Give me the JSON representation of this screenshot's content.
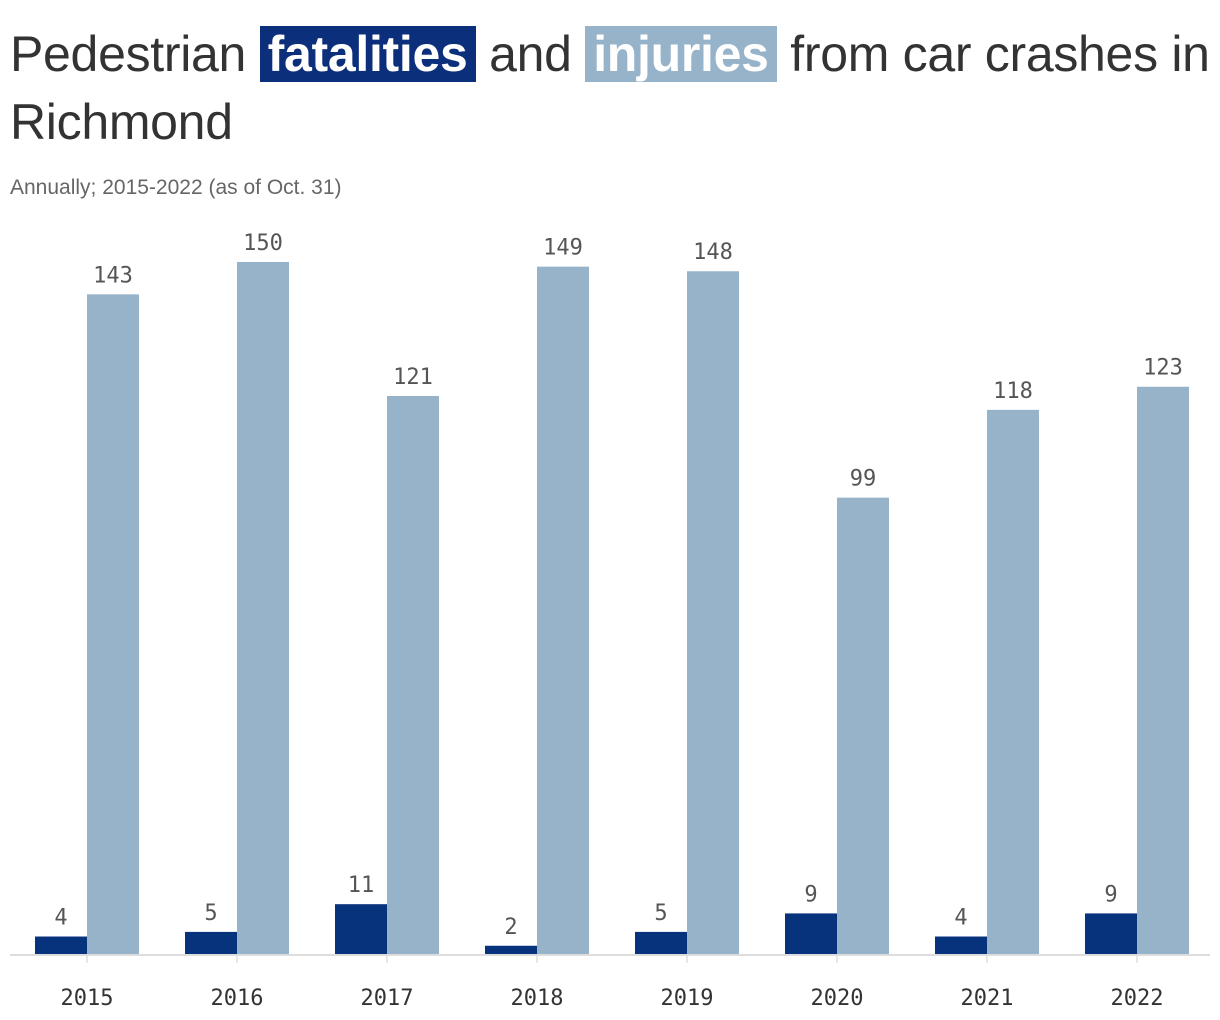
{
  "title": {
    "part1": "Pedestrian",
    "fatalities": "fatalities",
    "part2": "and",
    "injuries": "injuries",
    "part3": "from car crashes in Richmond"
  },
  "subtitle": "Annually; 2015-2022 (as of Oct. 31)",
  "colors": {
    "fatalities": "#07337c",
    "injuries": "#97b3ca",
    "axis": "#dddddd"
  },
  "chart_data": {
    "type": "bar",
    "categories": [
      "2015",
      "2016",
      "2017",
      "2018",
      "2019",
      "2020",
      "2021",
      "2022"
    ],
    "series": [
      {
        "name": "fatalities",
        "values": [
          4,
          5,
          11,
          2,
          5,
          9,
          4,
          9
        ]
      },
      {
        "name": "injuries",
        "values": [
          143,
          150,
          121,
          149,
          148,
          99,
          118,
          123
        ]
      }
    ],
    "ylim": [
      0,
      150
    ],
    "grid": false,
    "legend": "title"
  }
}
